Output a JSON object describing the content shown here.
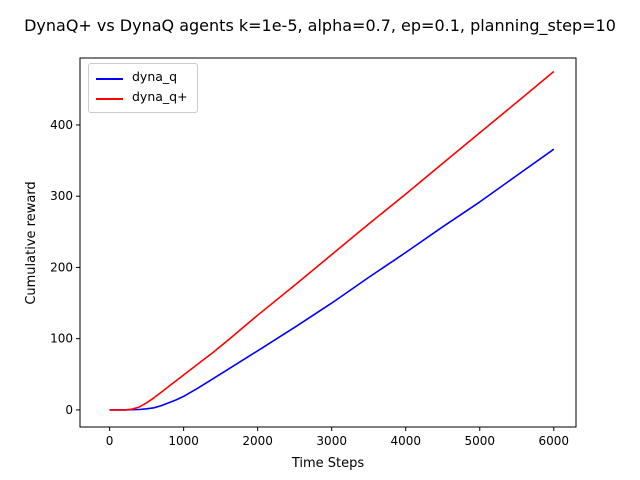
{
  "chart_data": {
    "type": "line",
    "title": "DynaQ+ vs DynaQ agents k=1e-5, alpha=0.7, ep=0.1, planning_step=10",
    "xlabel": "Time Steps",
    "ylabel": "Cumulative reward",
    "xlim": [
      -400,
      6300
    ],
    "ylim": [
      -24,
      494
    ],
    "xticks": [
      0,
      1000,
      2000,
      3000,
      4000,
      5000,
      6000
    ],
    "xtick_labels": [
      "0",
      "1000",
      "2000",
      "3000",
      "4000",
      "5000",
      "6000"
    ],
    "yticks": [
      0,
      100,
      200,
      300,
      400
    ],
    "ytick_labels": [
      "0",
      "100",
      "200",
      "300",
      "400"
    ],
    "grid": false,
    "legend_position": "upper-left",
    "series": [
      {
        "name": "dyna_q",
        "color": "#0000ff",
        "x": [
          0,
          200,
          400,
          500,
          600,
          700,
          800,
          900,
          1000,
          1200,
          1400,
          1600,
          2000,
          2500,
          3000,
          3500,
          4000,
          4500,
          5000,
          5500,
          6000
        ],
        "y": [
          0,
          0,
          0.5,
          1.5,
          3,
          6,
          10,
          14,
          19,
          31,
          44,
          57,
          83,
          116,
          150,
          186,
          221,
          257,
          292,
          329,
          366
        ]
      },
      {
        "name": "dyna_q+",
        "color": "#ff0000",
        "x": [
          0,
          200,
          300,
          400,
          500,
          600,
          700,
          800,
          900,
          1000,
          1200,
          1400,
          1600,
          2000,
          2500,
          3000,
          3500,
          4000,
          4500,
          5000,
          5500,
          6000
        ],
        "y": [
          0,
          0,
          1,
          4,
          10,
          17,
          25,
          33,
          41,
          49,
          65,
          81,
          98,
          133,
          175,
          218,
          261,
          303,
          346,
          389,
          432,
          475
        ]
      }
    ]
  }
}
